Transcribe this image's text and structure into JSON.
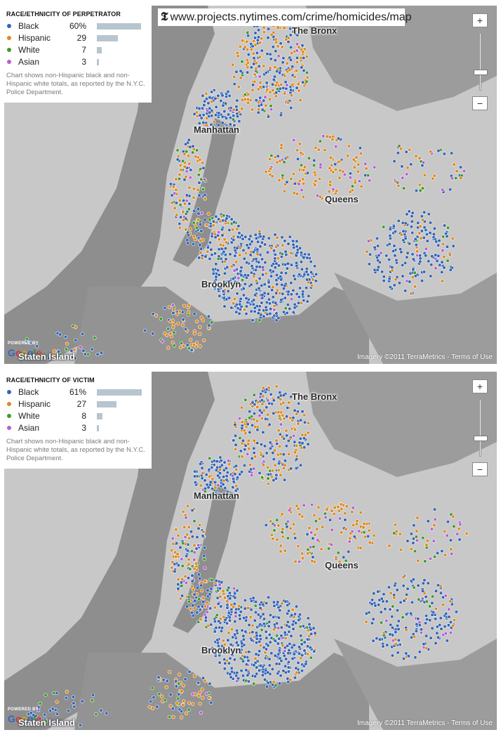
{
  "url_box": {
    "logo_glyph": "𝕿",
    "url": "www.projects.nytimes.com/crime/homicides/map"
  },
  "colors": {
    "black": "#3465b6",
    "hispanic": "#dd8a23",
    "white": "#3f9a2d",
    "asian": "#b55fd2",
    "unknown": "#f2f2f2",
    "bar": "#b7c5ce"
  },
  "panels": [
    {
      "id": "perpetrator",
      "legend": {
        "title": "RACE/ETHNICITY OF PERPETRATOR",
        "rows": [
          {
            "label": "Black",
            "value": "60%",
            "percent": 60,
            "color": "#3465b6"
          },
          {
            "label": "Hispanic",
            "value": "29",
            "percent": 29,
            "color": "#dd8a23"
          },
          {
            "label": "White",
            "value": "7",
            "percent": 7,
            "color": "#3f9a2d"
          },
          {
            "label": "Asian",
            "value": "3",
            "percent": 3,
            "color": "#b55fd2"
          }
        ],
        "note": "Chart shows non-Hispanic black and non-Hispanic white totals, as reported by the N.Y.C. Police Department."
      },
      "labels": {
        "bronx": "The Bronx",
        "manhattan": "Manhattan",
        "queens": "Queens",
        "brooklyn": "Brooklyn",
        "staten": "Staten Island"
      },
      "powered": "POWERED BY",
      "google": "Google",
      "credit": "Imagery ©2011 TerraMetrics - Terms of Use",
      "zoom": {
        "in": "+",
        "out": "−",
        "level": 0.3
      }
    },
    {
      "id": "victim",
      "legend": {
        "title": "RACE/ETHNICITY OF VICTIM",
        "rows": [
          {
            "label": "Black",
            "value": "61%",
            "percent": 61,
            "color": "#3465b6"
          },
          {
            "label": "Hispanic",
            "value": "27",
            "percent": 27,
            "color": "#dd8a23"
          },
          {
            "label": "White",
            "value": "8",
            "percent": 8,
            "color": "#3f9a2d"
          },
          {
            "label": "Asian",
            "value": "3",
            "percent": 3,
            "color": "#b55fd2"
          }
        ],
        "note": "Chart shows non-Hispanic black and non-Hispanic white totals, as reported by the N.Y.C. Police Department."
      },
      "labels": {
        "bronx": "The Bronx",
        "manhattan": "Manhattan",
        "queens": "Queens",
        "brooklyn": "Brooklyn",
        "staten": "Staten Island"
      },
      "powered": "POWERED BY",
      "google": "Google",
      "credit": "Imagery ©2011 TerraMetrics - Terms of Use",
      "zoom": {
        "in": "+",
        "out": "−",
        "level": 0.3
      }
    }
  ]
}
